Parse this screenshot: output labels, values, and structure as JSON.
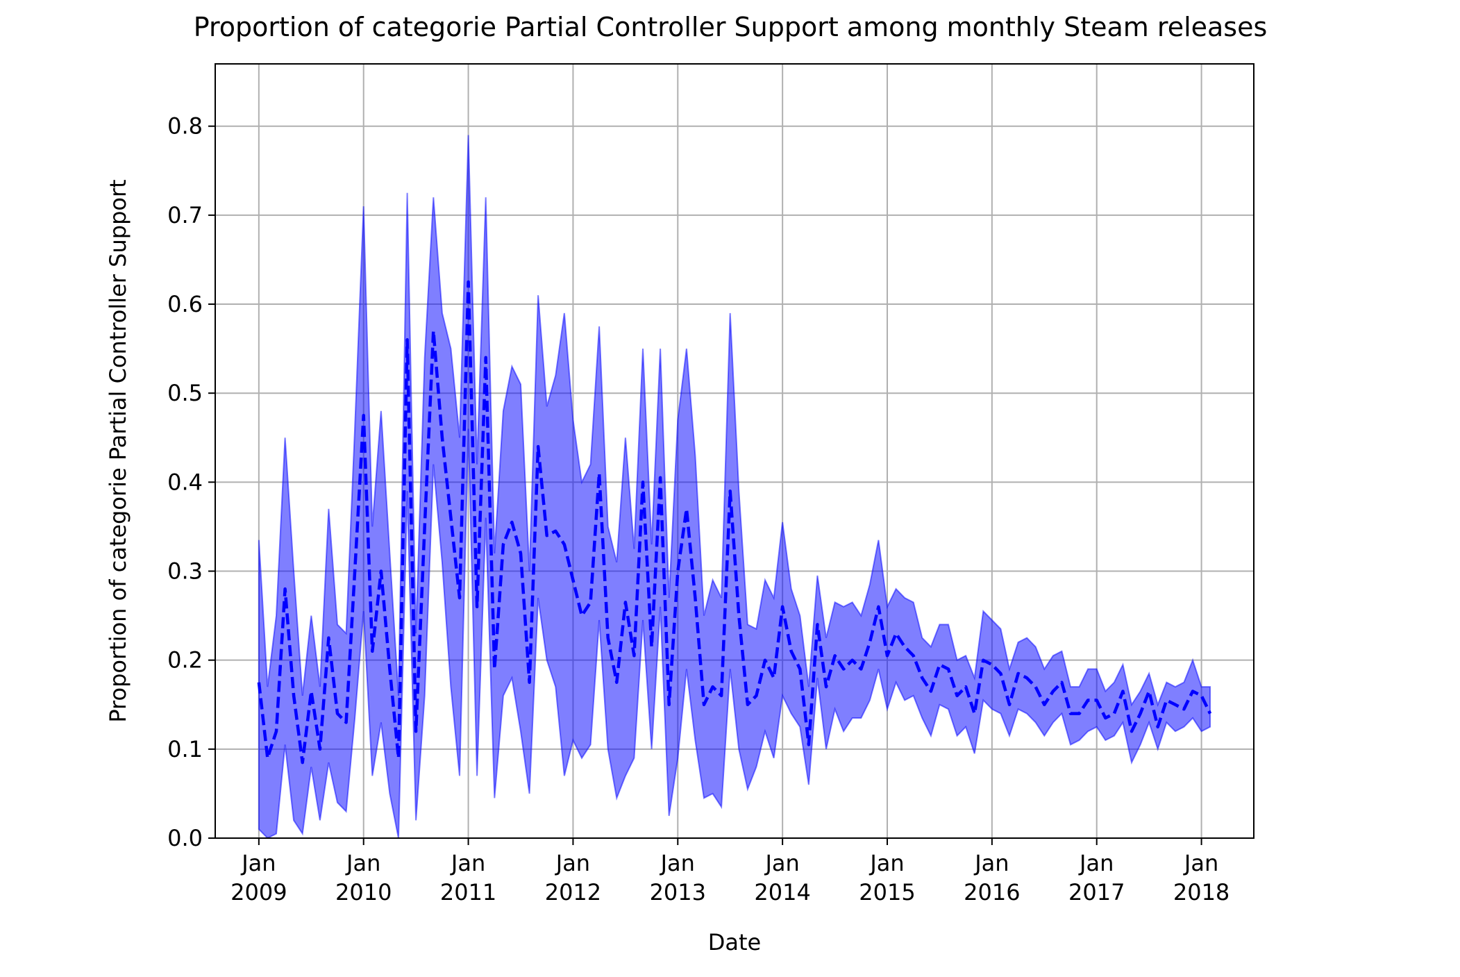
{
  "chart_data": {
    "type": "line",
    "title": "Proportion of categorie Partial Controller Support among monthly Steam releases",
    "xlabel": "Date",
    "ylabel": "Proportion of categorie Partial Controller Support",
    "xlim": [
      "2008-08",
      "2018-07"
    ],
    "ylim": [
      0,
      0.87
    ],
    "grid": true,
    "x_ticks": [
      {
        "month": "2009-01",
        "line1": "Jan",
        "line2": "2009"
      },
      {
        "month": "2010-01",
        "line1": "Jan",
        "line2": "2010"
      },
      {
        "month": "2011-01",
        "line1": "Jan",
        "line2": "2011"
      },
      {
        "month": "2012-01",
        "line1": "Jan",
        "line2": "2012"
      },
      {
        "month": "2013-01",
        "line1": "Jan",
        "line2": "2013"
      },
      {
        "month": "2014-01",
        "line1": "Jan",
        "line2": "2014"
      },
      {
        "month": "2015-01",
        "line1": "Jan",
        "line2": "2015"
      },
      {
        "month": "2016-01",
        "line1": "Jan",
        "line2": "2016"
      },
      {
        "month": "2017-01",
        "line1": "Jan",
        "line2": "2017"
      },
      {
        "month": "2018-01",
        "line1": "Jan",
        "line2": "2018"
      }
    ],
    "y_ticks": [
      "0.0",
      "0.1",
      "0.2",
      "0.3",
      "0.4",
      "0.5",
      "0.6",
      "0.7",
      "0.8"
    ],
    "y_tick_values": [
      0,
      0.1,
      0.2,
      0.3,
      0.4,
      0.5,
      0.6,
      0.7,
      0.8
    ],
    "series": [
      {
        "kind": "mean-line",
        "style": "dashed",
        "color": "#0000ff",
        "start": "2009-01",
        "values": [
          0.175,
          0.09,
          0.12,
          0.28,
          0.16,
          0.085,
          0.165,
          0.1,
          0.225,
          0.14,
          0.13,
          0.3,
          0.475,
          0.21,
          0.3,
          0.19,
          0.09,
          0.56,
          0.12,
          0.35,
          0.57,
          0.45,
          0.36,
          0.27,
          0.625,
          0.26,
          0.54,
          0.19,
          0.33,
          0.355,
          0.32,
          0.175,
          0.44,
          0.34,
          0.345,
          0.33,
          0.29,
          0.25,
          0.265,
          0.41,
          0.225,
          0.175,
          0.265,
          0.205,
          0.4,
          0.215,
          0.405,
          0.15,
          0.3,
          0.37,
          0.27,
          0.15,
          0.17,
          0.16,
          0.39,
          0.25,
          0.15,
          0.16,
          0.2,
          0.18,
          0.26,
          0.21,
          0.19,
          0.105,
          0.24,
          0.17,
          0.205,
          0.19,
          0.2,
          0.19,
          0.22,
          0.26,
          0.205,
          0.23,
          0.215,
          0.205,
          0.18,
          0.165,
          0.195,
          0.19,
          0.16,
          0.17,
          0.14,
          0.2,
          0.195,
          0.185,
          0.15,
          0.185,
          0.18,
          0.17,
          0.15,
          0.165,
          0.175,
          0.14,
          0.14,
          0.155,
          0.155,
          0.135,
          0.14,
          0.165,
          0.12,
          0.14,
          0.165,
          0.125,
          0.155,
          0.15,
          0.145,
          0.165,
          0.16,
          0.14
        ]
      },
      {
        "kind": "band-upper",
        "color": "#0000ff",
        "start": "2009-01",
        "values": [
          0.335,
          0.17,
          0.25,
          0.45,
          0.3,
          0.16,
          0.25,
          0.17,
          0.37,
          0.24,
          0.23,
          0.46,
          0.71,
          0.35,
          0.48,
          0.32,
          0.16,
          0.725,
          0.23,
          0.54,
          0.72,
          0.59,
          0.55,
          0.45,
          0.79,
          0.42,
          0.72,
          0.32,
          0.48,
          0.53,
          0.51,
          0.3,
          0.61,
          0.485,
          0.52,
          0.59,
          0.47,
          0.4,
          0.42,
          0.575,
          0.35,
          0.31,
          0.45,
          0.325,
          0.55,
          0.33,
          0.55,
          0.27,
          0.47,
          0.55,
          0.43,
          0.25,
          0.29,
          0.27,
          0.59,
          0.39,
          0.24,
          0.235,
          0.29,
          0.27,
          0.355,
          0.28,
          0.25,
          0.17,
          0.295,
          0.225,
          0.265,
          0.26,
          0.265,
          0.25,
          0.285,
          0.335,
          0.26,
          0.28,
          0.27,
          0.265,
          0.225,
          0.215,
          0.24,
          0.24,
          0.2,
          0.205,
          0.18,
          0.255,
          0.245,
          0.235,
          0.19,
          0.22,
          0.225,
          0.215,
          0.19,
          0.205,
          0.21,
          0.17,
          0.17,
          0.19,
          0.19,
          0.165,
          0.175,
          0.195,
          0.15,
          0.165,
          0.185,
          0.15,
          0.175,
          0.17,
          0.175,
          0.2,
          0.17,
          0.17
        ]
      },
      {
        "kind": "band-lower",
        "color": "#0000ff",
        "start": "2009-01",
        "values": [
          0.01,
          0.0,
          0.005,
          0.105,
          0.02,
          0.005,
          0.08,
          0.02,
          0.085,
          0.04,
          0.03,
          0.135,
          0.255,
          0.07,
          0.13,
          0.05,
          0.0,
          0.39,
          0.02,
          0.16,
          0.42,
          0.31,
          0.17,
          0.07,
          0.46,
          0.07,
          0.36,
          0.045,
          0.16,
          0.18,
          0.12,
          0.05,
          0.27,
          0.2,
          0.17,
          0.07,
          0.11,
          0.09,
          0.105,
          0.245,
          0.1,
          0.045,
          0.07,
          0.09,
          0.245,
          0.1,
          0.26,
          0.025,
          0.09,
          0.19,
          0.11,
          0.045,
          0.05,
          0.035,
          0.19,
          0.1,
          0.055,
          0.08,
          0.12,
          0.09,
          0.16,
          0.14,
          0.125,
          0.06,
          0.18,
          0.1,
          0.145,
          0.12,
          0.135,
          0.135,
          0.155,
          0.19,
          0.145,
          0.175,
          0.155,
          0.16,
          0.135,
          0.115,
          0.15,
          0.145,
          0.115,
          0.125,
          0.095,
          0.155,
          0.145,
          0.14,
          0.115,
          0.145,
          0.14,
          0.13,
          0.115,
          0.13,
          0.14,
          0.105,
          0.11,
          0.12,
          0.125,
          0.11,
          0.115,
          0.13,
          0.085,
          0.105,
          0.13,
          0.1,
          0.13,
          0.12,
          0.125,
          0.135,
          0.12,
          0.125
        ]
      }
    ]
  }
}
